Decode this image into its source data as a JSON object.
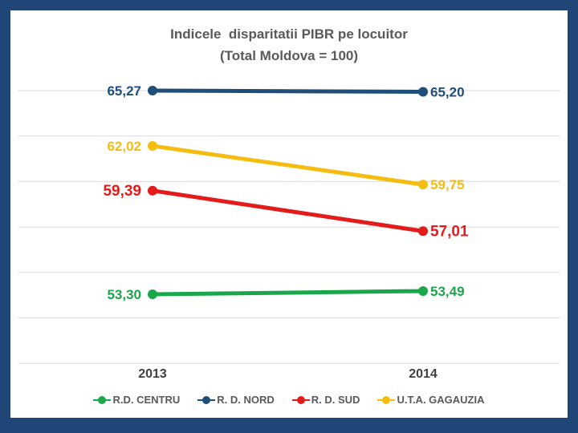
{
  "chart_data": {
    "type": "line",
    "title_line1": "Indicele  disparitatii PIBR pe locuitor",
    "title_line2": "(Total Moldova = 100)",
    "categories": [
      "2013",
      "2014"
    ],
    "grid": true,
    "legend_position": "bottom",
    "series": [
      {
        "name": "R.D. CENTRU",
        "color": "#1aa64a",
        "values": [
          53.3,
          53.49
        ],
        "labels": [
          "53,30",
          "53,49"
        ]
      },
      {
        "name": "R. D. NORD",
        "color": "#1f4e79",
        "values": [
          65.27,
          65.2
        ],
        "labels": [
          "65,27",
          "65,20"
        ]
      },
      {
        "name": "R. D. SUD",
        "color": "#e31b1b",
        "values": [
          59.39,
          57.01
        ],
        "labels": [
          "59,39",
          "57,01"
        ]
      },
      {
        "name": "U.T.A. GAGAUZIA",
        "color": "#f5bd0f",
        "values": [
          62.02,
          59.75
        ],
        "labels": [
          "62,02",
          "59,75"
        ]
      }
    ]
  }
}
